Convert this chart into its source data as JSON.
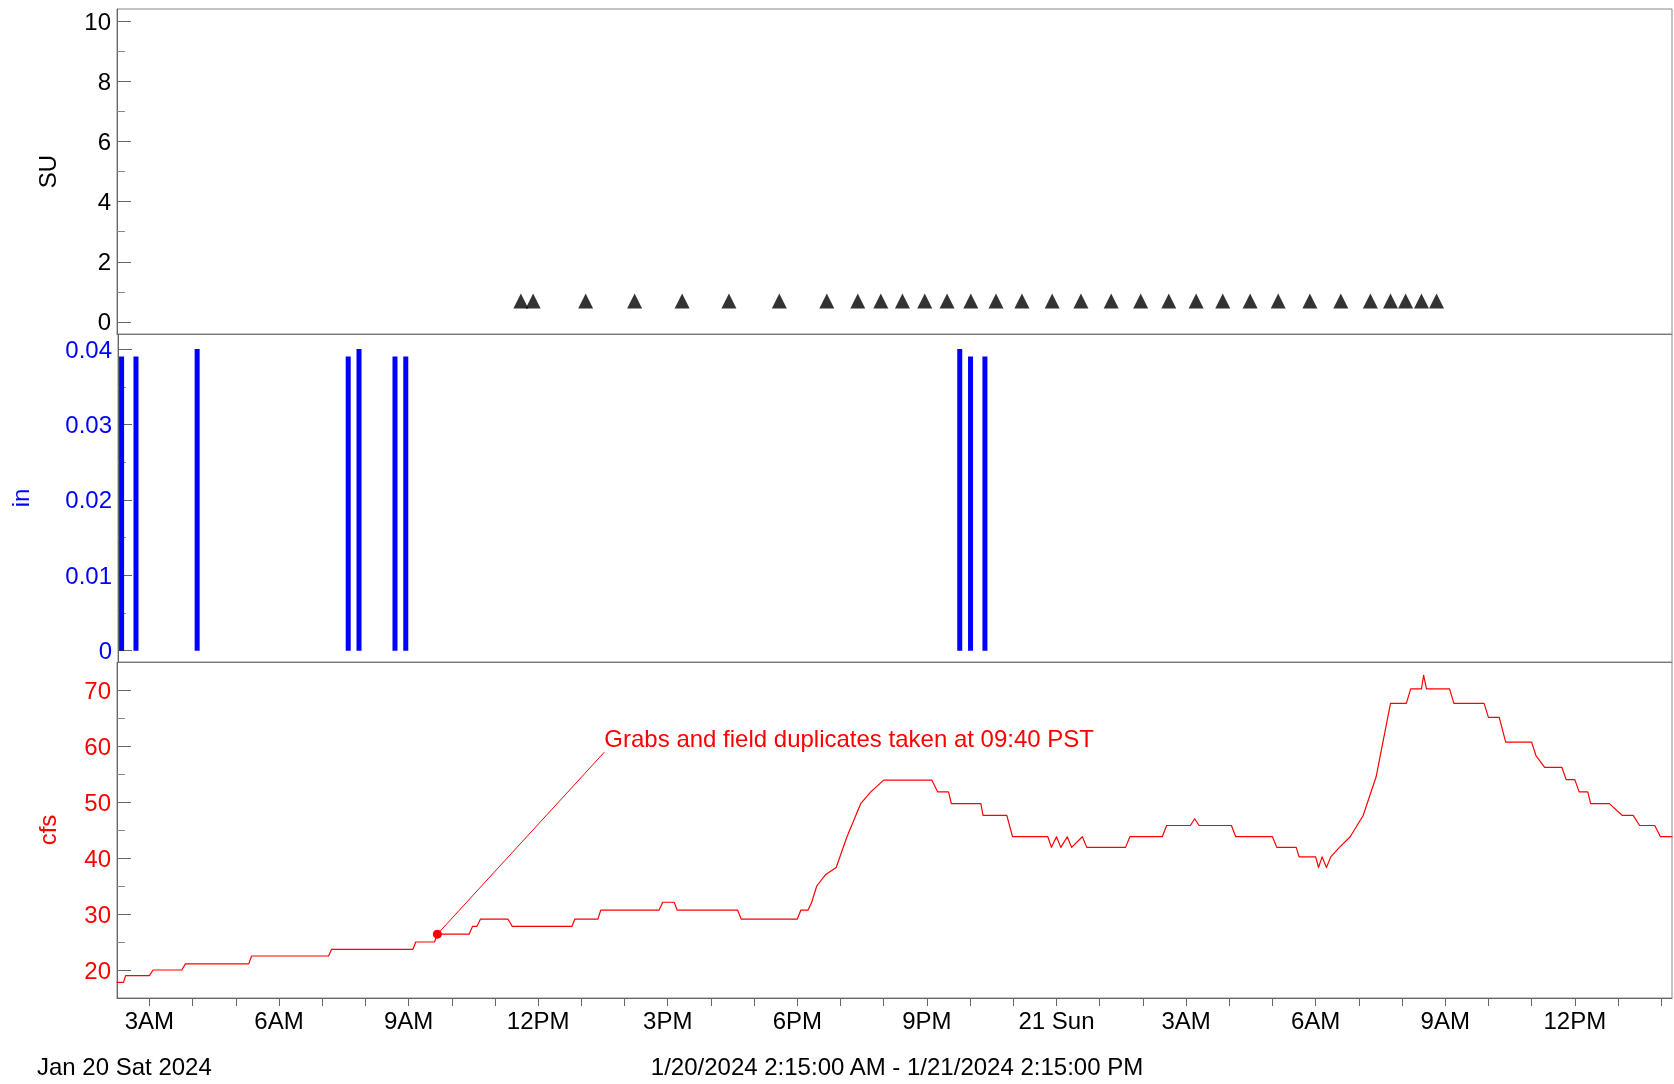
{
  "chart_data": [
    {
      "type": "scatter",
      "ylabel": "SU",
      "color": "#000000",
      "marker": "triangle",
      "tick_labels": "y",
      "x": [
        "2024-01-20T11:36",
        "2024-01-20T11:53",
        "2024-01-20T13:06",
        "2024-01-20T14:14",
        "2024-01-20T15:20",
        "2024-01-20T16:25",
        "2024-01-20T17:35",
        "2024-01-20T18:41",
        "2024-01-20T19:24",
        "2024-01-20T19:56",
        "2024-01-20T20:26",
        "2024-01-20T20:57",
        "2024-01-20T21:28",
        "2024-01-20T22:01",
        "2024-01-20T22:36",
        "2024-01-20T23:12",
        "2024-01-20T23:54",
        "2024-01-21T00:34",
        "2024-01-21T01:16",
        "2024-01-21T01:57",
        "2024-01-21T02:36",
        "2024-01-21T03:14",
        "2024-01-21T03:51",
        "2024-01-21T04:29",
        "2024-01-21T05:08",
        "2024-01-21T05:52",
        "2024-01-21T06:35",
        "2024-01-21T07:16",
        "2024-01-21T07:44",
        "2024-01-21T08:05",
        "2024-01-21T08:27",
        "2024-01-21T08:48"
      ],
      "values": [
        0.7,
        0.7,
        0.7,
        0.7,
        0.7,
        0.7,
        0.7,
        0.7,
        0.7,
        0.7,
        0.7,
        0.7,
        0.7,
        0.7,
        0.7,
        0.7,
        0.7,
        0.7,
        0.7,
        0.7,
        0.7,
        0.7,
        0.7,
        0.7,
        0.7,
        0.7,
        0.7,
        0.7,
        0.7,
        0.7,
        0.7,
        0.7
      ],
      "xlim": [
        "2024-01-20T02:15",
        "2024-01-21T14:15"
      ],
      "ylim": [
        -0.4,
        10.4
      ],
      "yticks": [
        0,
        2,
        4,
        6,
        8,
        10
      ]
    },
    {
      "type": "bar",
      "ylabel": "in",
      "color": "#0000ff",
      "tick_labels": "y",
      "x": [
        "2024-01-20T02:20",
        "2024-01-20T02:40",
        "2024-01-20T04:05",
        "2024-01-20T07:35",
        "2024-01-20T07:50",
        "2024-01-20T08:40",
        "2024-01-20T08:55",
        "2024-01-20T21:45",
        "2024-01-20T22:00",
        "2024-01-20T22:20"
      ],
      "values": [
        0.039,
        0.039,
        0.04,
        0.039,
        0.04,
        0.039,
        0.039,
        0.04,
        0.039,
        0.039
      ],
      "xlim": [
        "2024-01-20T02:15",
        "2024-01-21T14:15"
      ],
      "ylim": [
        -0.0015,
        0.042
      ],
      "yticks": [
        0,
        0.01,
        0.02,
        0.03,
        0.04
      ]
    },
    {
      "type": "line",
      "ylabel": "cfs",
      "color": "#ff0000",
      "marker": "none",
      "line_style": "solid",
      "x": [
        "2024-01-20T02:15",
        "2024-01-20T02:24",
        "2024-01-20T02:27",
        "2024-01-20T03:00",
        "2024-01-20T03:05",
        "2024-01-20T03:45",
        "2024-01-20T03:50",
        "2024-01-20T05:18",
        "2024-01-20T05:22",
        "2024-01-20T07:09",
        "2024-01-20T07:13",
        "2024-01-20T09:06",
        "2024-01-20T09:10",
        "2024-01-20T09:36",
        "2024-01-20T09:40",
        "2024-01-20T10:24",
        "2024-01-20T10:29",
        "2024-01-20T10:35",
        "2024-01-20T10:40",
        "2024-01-20T11:18",
        "2024-01-20T11:24",
        "2024-01-20T12:47",
        "2024-01-20T12:51",
        "2024-01-20T13:23",
        "2024-01-20T13:27",
        "2024-01-20T14:48",
        "2024-01-20T14:53",
        "2024-01-20T15:09",
        "2024-01-20T15:13",
        "2024-01-20T16:37",
        "2024-01-20T16:42",
        "2024-01-20T18:00",
        "2024-01-20T18:05",
        "2024-01-20T18:15",
        "2024-01-20T18:20",
        "2024-01-20T18:27",
        "2024-01-20T18:39",
        "2024-01-20T18:54",
        "2024-01-20T19:09",
        "2024-01-20T19:28",
        "2024-01-20T19:42",
        "2024-01-20T20:00",
        "2024-01-20T21:07",
        "2024-01-20T21:15",
        "2024-01-20T21:30",
        "2024-01-20T21:34",
        "2024-01-20T22:15",
        "2024-01-20T22:18",
        "2024-01-20T22:51",
        "2024-01-20T22:59",
        "2024-01-20T23:48",
        "2024-01-20T23:53",
        "2024-01-21T00:00",
        "2024-01-21T00:06",
        "2024-01-21T00:15",
        "2024-01-21T00:21",
        "2024-01-21T00:36",
        "2024-01-21T00:42",
        "2024-01-21T01:36",
        "2024-01-21T01:42",
        "2024-01-21T02:27",
        "2024-01-21T02:33",
        "2024-01-21T03:06",
        "2024-01-21T03:12",
        "2024-01-21T03:18",
        "2024-01-21T04:03",
        "2024-01-21T04:09",
        "2024-01-21T05:00",
        "2024-01-21T05:06",
        "2024-01-21T05:33",
        "2024-01-21T05:37",
        "2024-01-21T06:00",
        "2024-01-21T06:04",
        "2024-01-21T06:09",
        "2024-01-21T06:15",
        "2024-01-21T06:21",
        "2024-01-21T06:33",
        "2024-01-21T06:48",
        "2024-01-21T07:06",
        "2024-01-21T07:24",
        "2024-01-21T07:44",
        "2024-01-21T08:06",
        "2024-01-21T08:12",
        "2024-01-21T08:27",
        "2024-01-21T08:30",
        "2024-01-21T08:34",
        "2024-01-21T09:06",
        "2024-01-21T09:12",
        "2024-01-21T09:54",
        "2024-01-21T10:00",
        "2024-01-21T10:15",
        "2024-01-21T10:24",
        "2024-01-21T11:00",
        "2024-01-21T11:06",
        "2024-01-21T11:18",
        "2024-01-21T11:42",
        "2024-01-21T11:48",
        "2024-01-21T12:00",
        "2024-01-21T12:06",
        "2024-01-21T12:18",
        "2024-01-21T12:22",
        "2024-01-21T12:48",
        "2024-01-21T13:06",
        "2024-01-21T13:21",
        "2024-01-21T13:30",
        "2024-01-21T13:51",
        "2024-01-21T13:59",
        "2024-01-21T14:15"
      ],
      "values": [
        17.8,
        17.8,
        19.0,
        19.0,
        20.0,
        20.0,
        21.1,
        21.1,
        22.5,
        22.5,
        23.7,
        23.7,
        25.0,
        25.0,
        26.4,
        26.4,
        27.8,
        27.8,
        29.1,
        29.1,
        27.8,
        27.8,
        29.1,
        29.1,
        30.7,
        30.7,
        32.1,
        32.1,
        30.7,
        30.7,
        29.1,
        29.1,
        30.7,
        30.7,
        32.1,
        35.0,
        37.0,
        38.3,
        43.8,
        49.7,
        51.8,
        53.9,
        53.9,
        51.8,
        51.8,
        49.7,
        49.7,
        47.6,
        47.6,
        43.8,
        43.8,
        41.9,
        43.8,
        41.9,
        43.8,
        41.9,
        43.8,
        41.9,
        41.9,
        43.8,
        43.8,
        45.8,
        45.8,
        47.0,
        45.8,
        45.8,
        43.8,
        43.8,
        41.9,
        41.9,
        40.2,
        40.2,
        38.3,
        40.2,
        38.3,
        40.2,
        41.9,
        43.8,
        47.6,
        54.5,
        67.6,
        67.6,
        70.2,
        70.2,
        72.6,
        70.2,
        70.2,
        67.6,
        67.6,
        65.1,
        65.1,
        60.7,
        60.7,
        58.3,
        56.2,
        56.2,
        54.0,
        54.0,
        51.8,
        51.8,
        49.7,
        49.7,
        47.6,
        47.6,
        45.8,
        45.8,
        43.8,
        43.8
      ],
      "xlim": [
        "2024-01-20T02:15",
        "2024-01-21T14:15"
      ],
      "ylim": [
        15,
        75
      ],
      "yticks": [
        20,
        30,
        40,
        50,
        60,
        70
      ],
      "xticks": [
        {
          "value": "2024-01-20T03:00",
          "label": "3AM"
        },
        {
          "value": "2024-01-20T04:00",
          "label": null
        },
        {
          "value": "2024-01-20T05:00",
          "label": null
        },
        {
          "value": "2024-01-20T06:00",
          "label": "6AM"
        },
        {
          "value": "2024-01-20T07:00",
          "label": null
        },
        {
          "value": "2024-01-20T08:00",
          "label": null
        },
        {
          "value": "2024-01-20T09:00",
          "label": "9AM"
        },
        {
          "value": "2024-01-20T10:00",
          "label": null
        },
        {
          "value": "2024-01-20T11:00",
          "label": null
        },
        {
          "value": "2024-01-20T12:00",
          "label": "12PM"
        },
        {
          "value": "2024-01-20T13:00",
          "label": null
        },
        {
          "value": "2024-01-20T14:00",
          "label": null
        },
        {
          "value": "2024-01-20T15:00",
          "label": "3PM"
        },
        {
          "value": "2024-01-20T16:00",
          "label": null
        },
        {
          "value": "2024-01-20T17:00",
          "label": null
        },
        {
          "value": "2024-01-20T18:00",
          "label": "6PM"
        },
        {
          "value": "2024-01-20T19:00",
          "label": null
        },
        {
          "value": "2024-01-20T20:00",
          "label": null
        },
        {
          "value": "2024-01-20T21:00",
          "label": "9PM"
        },
        {
          "value": "2024-01-20T22:00",
          "label": null
        },
        {
          "value": "2024-01-20T23:00",
          "label": null
        },
        {
          "value": "2024-01-21T00:00",
          "label": "21 Sun"
        },
        {
          "value": "2024-01-21T01:00",
          "label": null
        },
        {
          "value": "2024-01-21T02:00",
          "label": null
        },
        {
          "value": "2024-01-21T03:00",
          "label": "3AM"
        },
        {
          "value": "2024-01-21T04:00",
          "label": null
        },
        {
          "value": "2024-01-21T05:00",
          "label": null
        },
        {
          "value": "2024-01-21T06:00",
          "label": "6AM"
        },
        {
          "value": "2024-01-21T07:00",
          "label": null
        },
        {
          "value": "2024-01-21T08:00",
          "label": null
        },
        {
          "value": "2024-01-21T09:00",
          "label": "9AM"
        },
        {
          "value": "2024-01-21T10:00",
          "label": null
        },
        {
          "value": "2024-01-21T11:00",
          "label": null
        },
        {
          "value": "2024-01-21T12:00",
          "label": "12PM"
        },
        {
          "value": "2024-01-21T13:00",
          "label": null
        },
        {
          "value": "2024-01-21T14:00",
          "label": null
        }
      ],
      "annotations": [
        {
          "text": "Grabs and field duplicates taken at 09:40 PST",
          "x": "2024-01-20T09:40",
          "y": 26.4
        },
        "Jan 20 Sat 2024",
        "1/20/2024 2:15:00 AM - 1/21/2024 2:15:00 PM"
      ]
    }
  ]
}
